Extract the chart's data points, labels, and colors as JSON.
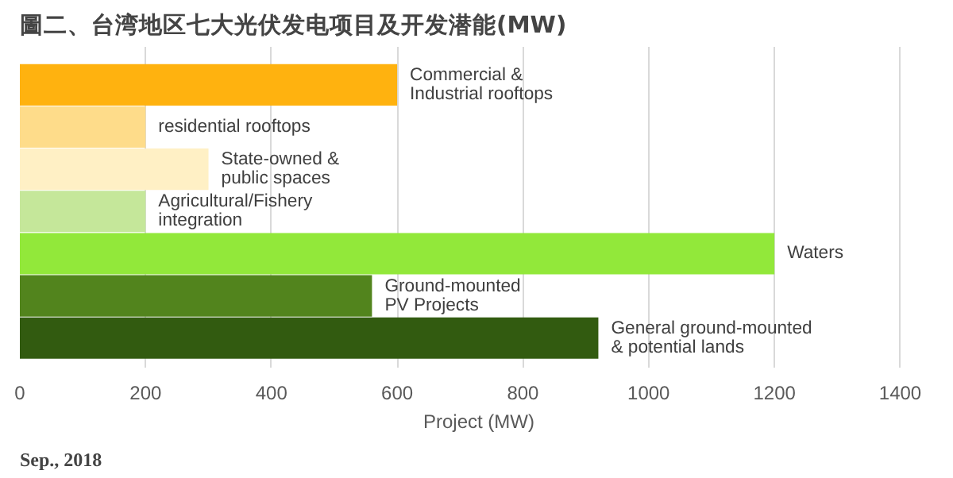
{
  "chart_data": {
    "type": "bar",
    "orientation": "horizontal",
    "title": "圖二、台湾地区七大光伏发电项目及开发潜能(MW)",
    "xlabel": "Project (MW)",
    "categories": [
      "Commercial & Industrial rooftops",
      "residential rooftops",
      "State-owned & public spaces",
      "Agricultural/Fishery integration",
      "Waters",
      "Ground-mounted PV Projects",
      "General ground-mounted & potential lands"
    ],
    "values": [
      600,
      200,
      300,
      200,
      1200,
      560,
      920
    ],
    "colors": [
      "#ffb20f",
      "#fedc8a",
      "#fff0c5",
      "#c5e79a",
      "#92e83a",
      "#52841d",
      "#325b10"
    ],
    "xlim": [
      0,
      1400
    ],
    "xticks": [
      0,
      200,
      400,
      600,
      800,
      1000,
      1200,
      1400
    ],
    "grid": "x",
    "annotations": [
      "Sep., 2018"
    ]
  }
}
